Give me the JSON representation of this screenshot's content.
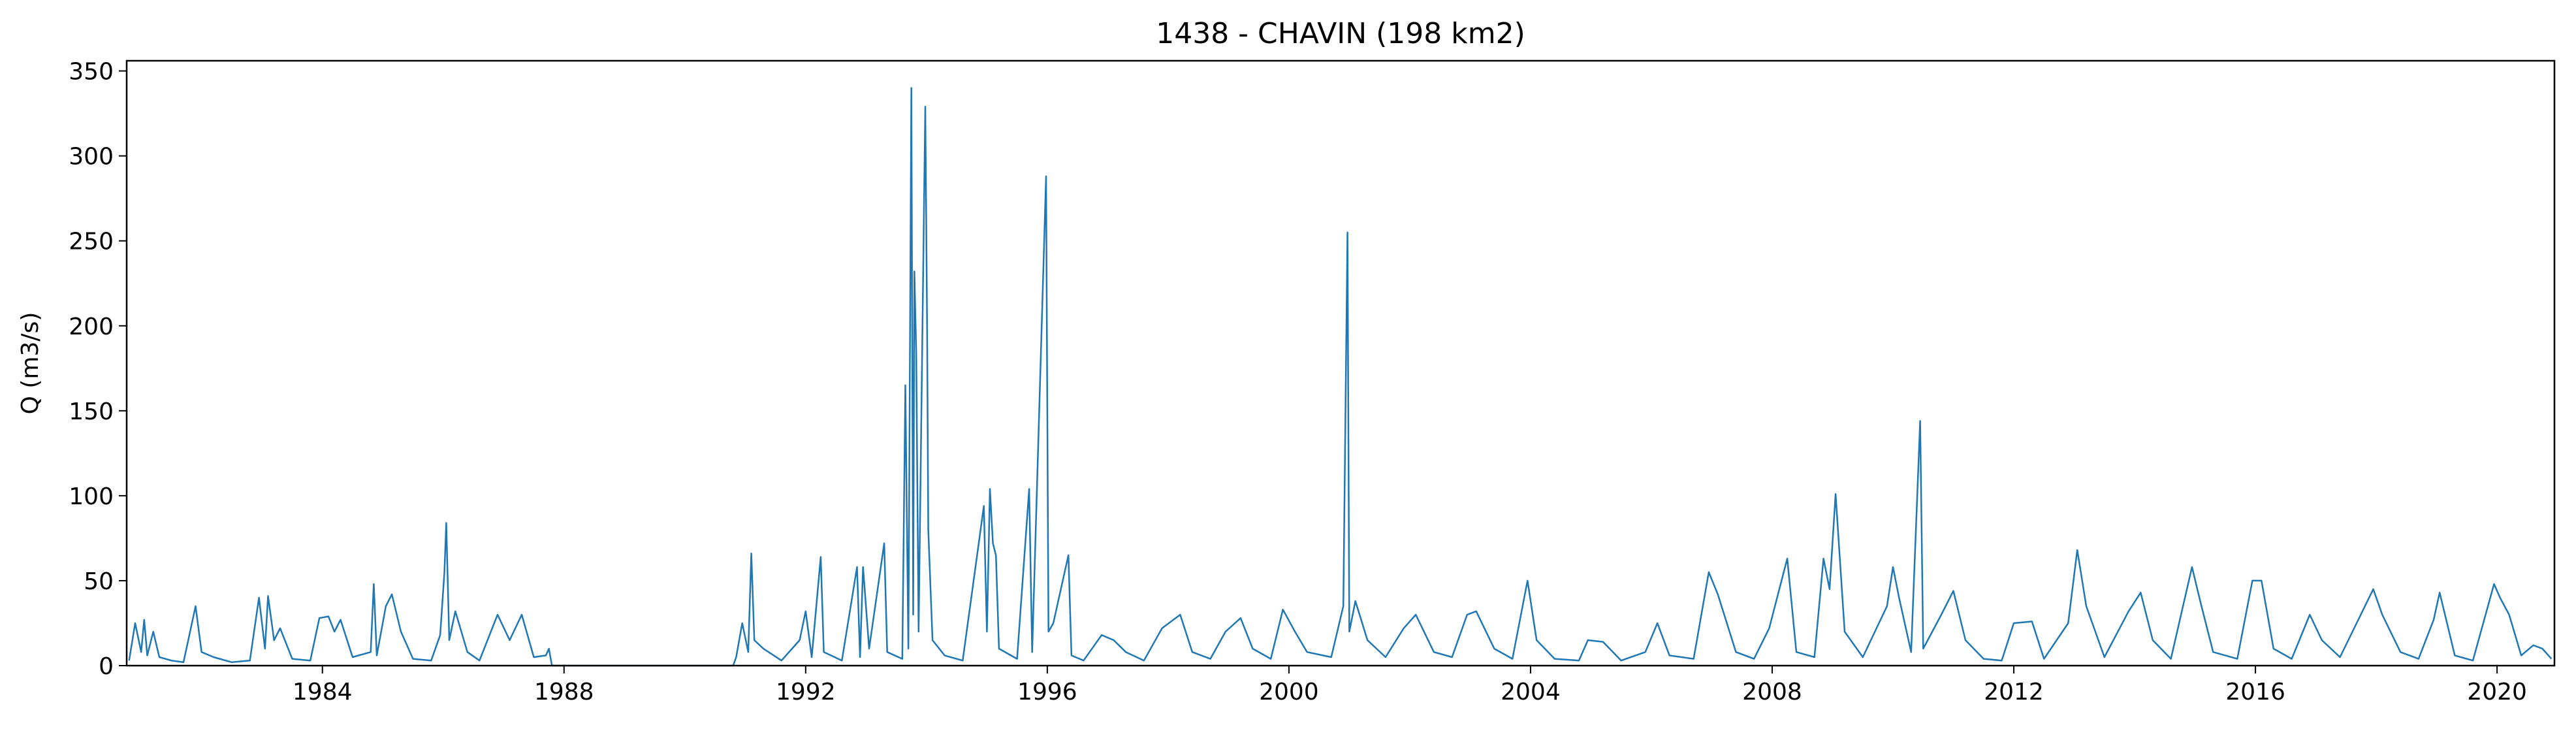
{
  "chart_data": {
    "type": "line",
    "title": "1438 - CHAVIN (198 km2)",
    "y_label": "Q (m3/s)",
    "color": "#1f77b4",
    "xlim": [
      1980.76,
      2020.95
    ],
    "ylim": [
      0,
      356
    ],
    "xticks": [
      1984,
      1988,
      1992,
      1996,
      2000,
      2004,
      2008,
      2012,
      2016,
      2020
    ],
    "yticks": [
      0,
      50,
      100,
      150,
      200,
      250,
      300,
      350
    ],
    "x": [
      1980.8,
      1980.9,
      1981.0,
      1981.05,
      1981.1,
      1981.2,
      1981.3,
      1981.5,
      1981.7,
      1981.9,
      1982.0,
      1982.2,
      1982.5,
      1982.8,
      1982.95,
      1983.05,
      1983.1,
      1983.2,
      1983.3,
      1983.5,
      1983.8,
      1983.95,
      1984.1,
      1984.2,
      1984.3,
      1984.5,
      1984.8,
      1984.85,
      1984.9,
      1985.05,
      1985.15,
      1985.3,
      1985.5,
      1985.8,
      1985.95,
      1986.02,
      1986.05,
      1986.1,
      1986.2,
      1986.4,
      1986.6,
      1986.9,
      1987.1,
      1987.3,
      1987.5,
      1987.7,
      1987.75,
      1987.8,
      1990.8,
      1990.85,
      1990.95,
      1991.05,
      1991.1,
      1991.15,
      1991.3,
      1991.6,
      1991.9,
      1992.0,
      1992.1,
      1992.25,
      1992.3,
      1992.6,
      1992.85,
      1992.9,
      1992.95,
      1993.05,
      1993.3,
      1993.35,
      1993.6,
      1993.65,
      1993.7,
      1993.75,
      1993.78,
      1993.8,
      1993.83,
      1993.87,
      1993.98,
      1994.01,
      1994.03,
      1994.1,
      1994.3,
      1994.6,
      1994.95,
      1995.0,
      1995.05,
      1995.1,
      1995.15,
      1995.2,
      1995.5,
      1995.7,
      1995.75,
      1995.98,
      1996.02,
      1996.1,
      1996.35,
      1996.4,
      1996.6,
      1996.9,
      1997.1,
      1997.3,
      1997.6,
      1997.9,
      1998.2,
      1998.4,
      1998.7,
      1998.95,
      1999.2,
      1999.4,
      1999.7,
      1999.9,
      2000.1,
      2000.3,
      2000.7,
      2000.9,
      2000.97,
      2001.0,
      2001.1,
      2001.3,
      2001.6,
      2001.9,
      2002.1,
      2002.4,
      2002.7,
      2002.95,
      2003.1,
      2003.4,
      2003.7,
      2003.95,
      2004.1,
      2004.4,
      2004.8,
      2004.95,
      2005.2,
      2005.5,
      2005.9,
      2006.1,
      2006.3,
      2006.7,
      2006.95,
      2007.1,
      2007.4,
      2007.7,
      2007.95,
      2008.25,
      2008.4,
      2008.7,
      2008.85,
      2008.95,
      2009.05,
      2009.2,
      2009.5,
      2009.9,
      2010.0,
      2010.1,
      2010.3,
      2010.45,
      2010.5,
      2010.8,
      2011.0,
      2011.2,
      2011.5,
      2011.8,
      2012.0,
      2012.3,
      2012.5,
      2012.9,
      2013.05,
      2013.2,
      2013.5,
      2013.9,
      2014.1,
      2014.3,
      2014.6,
      2014.95,
      2015.1,
      2015.3,
      2015.7,
      2015.95,
      2016.1,
      2016.3,
      2016.6,
      2016.9,
      2017.1,
      2017.4,
      2017.95,
      2018.1,
      2018.4,
      2018.7,
      2018.95,
      2019.05,
      2019.3,
      2019.6,
      2019.95,
      2020.05,
      2020.2,
      2020.4,
      2020.6,
      2020.75,
      2020.9
    ],
    "values": [
      3,
      25,
      8,
      27,
      6,
      20,
      5,
      3,
      2,
      35,
      8,
      5,
      2,
      3,
      40,
      10,
      41,
      15,
      22,
      4,
      3,
      28,
      29,
      20,
      27,
      5,
      8,
      48,
      6,
      35,
      42,
      20,
      4,
      3,
      18,
      55,
      84,
      15,
      32,
      8,
      3,
      30,
      15,
      30,
      5,
      6,
      10,
      0,
      0,
      5,
      25,
      8,
      66,
      15,
      10,
      3,
      15,
      32,
      5,
      64,
      8,
      3,
      58,
      5,
      58,
      10,
      72,
      8,
      4,
      165,
      10,
      340,
      30,
      232,
      185,
      20,
      329,
      200,
      80,
      15,
      6,
      3,
      94,
      20,
      104,
      72,
      65,
      10,
      4,
      104,
      8,
      288,
      20,
      25,
      65,
      6,
      3,
      18,
      15,
      8,
      3,
      22,
      30,
      8,
      4,
      20,
      28,
      10,
      4,
      33,
      20,
      8,
      5,
      35,
      255,
      20,
      38,
      15,
      5,
      22,
      30,
      8,
      5,
      30,
      32,
      10,
      4,
      50,
      15,
      4,
      3,
      15,
      14,
      3,
      8,
      25,
      6,
      4,
      55,
      42,
      8,
      4,
      22,
      63,
      8,
      5,
      63,
      45,
      101,
      20,
      5,
      35,
      58,
      40,
      8,
      144,
      10,
      30,
      44,
      15,
      4,
      3,
      25,
      26,
      4,
      25,
      68,
      35,
      5,
      32,
      43,
      15,
      4,
      58,
      36,
      8,
      4,
      50,
      50,
      10,
      4,
      30,
      15,
      5,
      45,
      30,
      8,
      4,
      27,
      43,
      6,
      3,
      48,
      40,
      30,
      6,
      12,
      10,
      4
    ]
  }
}
